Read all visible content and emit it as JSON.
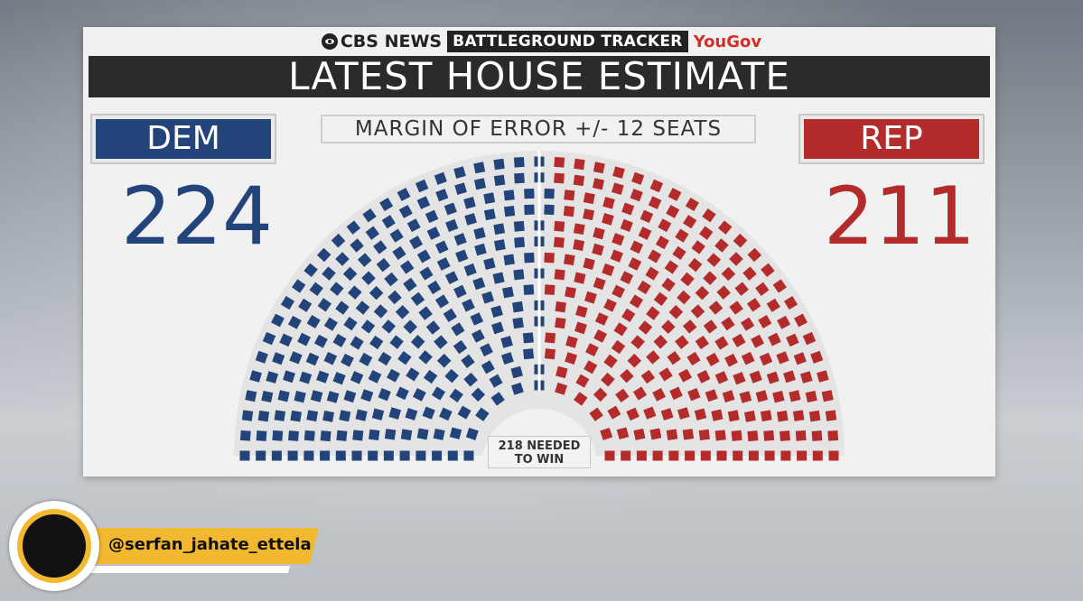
{
  "brand": {
    "network": "CBS NEWS",
    "program": "BATTLEGROUND TRACKER",
    "partner": "YouGov"
  },
  "headline": "LATEST HOUSE ESTIMATE",
  "margin_of_error": "MARGIN OF ERROR +/- 12 SEATS",
  "parties": {
    "dem": {
      "label": "DEM",
      "seats": "224",
      "color": "#23447a"
    },
    "rep": {
      "label": "REP",
      "seats": "211",
      "color": "#b32b2b"
    }
  },
  "majority_note": {
    "line1": "218 NEEDED",
    "line2": "TO WIN"
  },
  "watermark": {
    "handle": "@serfan_jahate_ettela"
  },
  "chart_data": {
    "type": "hemicycle",
    "title": "LATEST HOUSE ESTIMATE",
    "total_seats": 435,
    "majority_needed": 218,
    "margin_of_error_seats": 12,
    "series": [
      {
        "name": "DEM",
        "values": [
          224
        ],
        "color": "#23447a"
      },
      {
        "name": "REP",
        "values": [
          211
        ],
        "color": "#b32b2b"
      }
    ]
  }
}
